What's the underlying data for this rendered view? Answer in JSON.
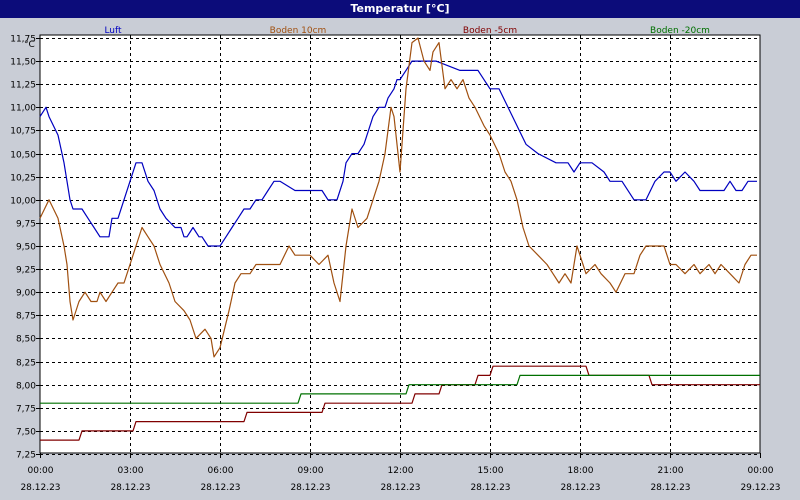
{
  "window": {
    "title": "Temperatur [°C]"
  },
  "colors": {
    "background": "#c9cdd6",
    "plot_bg": "#ffffff",
    "grid": "#000000",
    "title_bar": "#0c0c7a"
  },
  "chart_data": {
    "type": "line",
    "title": "Temperatur [°C]",
    "ylabel": "°C",
    "ylim": [
      7.25,
      11.75
    ],
    "yticks": [
      "7,25",
      "7,50",
      "7,75",
      "8,00",
      "8,25",
      "8,50",
      "8,75",
      "9,00",
      "9,25",
      "9,50",
      "9,75",
      "10,00",
      "10,25",
      "10,50",
      "10,75",
      "11,00",
      "11,25",
      "11,50",
      "11,75"
    ],
    "xlim": [
      0,
      24
    ],
    "xticks": [
      {
        "time": "00:00",
        "date": "28.12.23"
      },
      {
        "time": "03:00",
        "date": "28.12.23"
      },
      {
        "time": "06:00",
        "date": "28.12.23"
      },
      {
        "time": "09:00",
        "date": "28.12.23"
      },
      {
        "time": "12:00",
        "date": "28.12.23"
      },
      {
        "time": "15:00",
        "date": "28.12.23"
      },
      {
        "time": "18:00",
        "date": "28.12.23"
      },
      {
        "time": "21:00",
        "date": "28.12.23"
      },
      {
        "time": "00:00",
        "date": "29.12.23"
      }
    ],
    "grid": true,
    "legend_position": "top",
    "series": [
      {
        "name": "Luft",
        "color": "#0000c0",
        "x": [
          0,
          0.2,
          0.3,
          0.6,
          0.8,
          0.9,
          1,
          1.1,
          1.4,
          1.6,
          1.8,
          2.0,
          2.3,
          2.4,
          2.6,
          2.8,
          3.0,
          3.2,
          3.4,
          3.6,
          3.8,
          4.0,
          4.2,
          4.5,
          4.7,
          4.8,
          4.9,
          5.1,
          5.3,
          5.4,
          5.6,
          5.7,
          6.0,
          6.2,
          6.4,
          6.6,
          6.8,
          7.0,
          7.2,
          7.4,
          7.6,
          7.8,
          8.0,
          8.5,
          8.8,
          9.2,
          9.4,
          9.6,
          9.9,
          10.1,
          10.2,
          10.4,
          10.6,
          10.8,
          10.9,
          11.1,
          11.3,
          11.5,
          11.6,
          11.8,
          11.9,
          12.0,
          12.2,
          12.4,
          12.6,
          12.8,
          13.0,
          13.2,
          14.0,
          14.6,
          15.0,
          15.3,
          15.6,
          15.9,
          16.2,
          16.6,
          17.2,
          17.6,
          17.8,
          18.0,
          18.4,
          18.8,
          19.0,
          19.4,
          19.8,
          20.2,
          20.5,
          20.8,
          21.0,
          21.2,
          21.5,
          21.8,
          22.0,
          22.4,
          22.8,
          23.0,
          23.2,
          23.4,
          23.6,
          23.9
        ],
        "y": [
          10.9,
          11.0,
          10.9,
          10.7,
          10.4,
          10.2,
          10.0,
          9.9,
          9.9,
          9.8,
          9.7,
          9.6,
          9.6,
          9.8,
          9.8,
          10.0,
          10.2,
          10.4,
          10.4,
          10.2,
          10.1,
          9.9,
          9.8,
          9.7,
          9.7,
          9.6,
          9.6,
          9.7,
          9.6,
          9.6,
          9.5,
          9.5,
          9.5,
          9.6,
          9.7,
          9.8,
          9.9,
          9.9,
          10.0,
          10.0,
          10.1,
          10.2,
          10.2,
          10.1,
          10.1,
          10.1,
          10.1,
          10.0,
          10.0,
          10.2,
          10.4,
          10.5,
          10.5,
          10.6,
          10.7,
          10.9,
          11.0,
          11.0,
          11.1,
          11.2,
          11.3,
          11.3,
          11.4,
          11.5,
          11.5,
          11.5,
          11.5,
          11.5,
          11.4,
          11.4,
          11.2,
          11.2,
          11.0,
          10.8,
          10.6,
          10.5,
          10.4,
          10.4,
          10.3,
          10.4,
          10.4,
          10.3,
          10.2,
          10.2,
          10.0,
          10.0,
          10.2,
          10.3,
          10.3,
          10.2,
          10.3,
          10.2,
          10.1,
          10.1,
          10.1,
          10.2,
          10.1,
          10.1,
          10.2,
          10.2
        ]
      },
      {
        "name": "Boden 10cm",
        "color": "#a05010",
        "x": [
          0,
          0.3,
          0.6,
          0.8,
          0.9,
          1.0,
          1.1,
          1.3,
          1.5,
          1.7,
          1.9,
          2.0,
          2.2,
          2.4,
          2.6,
          2.8,
          3.0,
          3.2,
          3.4,
          3.6,
          3.8,
          4.0,
          4.3,
          4.5,
          4.8,
          5.0,
          5.2,
          5.5,
          5.7,
          5.8,
          6.0,
          6.3,
          6.5,
          6.7,
          7.0,
          7.2,
          7.5,
          7.8,
          8.0,
          8.3,
          8.5,
          8.8,
          9.0,
          9.3,
          9.6,
          9.8,
          10.0,
          10.2,
          10.4,
          10.6,
          10.9,
          11.1,
          11.3,
          11.5,
          11.7,
          11.8,
          12.0,
          12.2,
          12.4,
          12.6,
          12.8,
          13.0,
          13.1,
          13.3,
          13.5,
          13.7,
          13.9,
          14.1,
          14.3,
          14.5,
          14.8,
          15.0,
          15.3,
          15.5,
          15.7,
          15.9,
          16.1,
          16.3,
          16.6,
          16.9,
          17.1,
          17.3,
          17.5,
          17.7,
          17.9,
          18.2,
          18.5,
          18.7,
          19.0,
          19.2,
          19.5,
          19.8,
          20.0,
          20.2,
          20.5,
          20.8,
          21.0,
          21.2,
          21.5,
          21.8,
          22.0,
          22.3,
          22.5,
          22.7,
          23.0,
          23.3,
          23.5,
          23.7,
          23.9
        ],
        "y": [
          9.8,
          10.0,
          9.8,
          9.5,
          9.3,
          8.9,
          8.7,
          8.9,
          9.0,
          8.9,
          8.9,
          9.0,
          8.9,
          9.0,
          9.1,
          9.1,
          9.3,
          9.5,
          9.7,
          9.6,
          9.5,
          9.3,
          9.1,
          8.9,
          8.8,
          8.7,
          8.5,
          8.6,
          8.5,
          8.3,
          8.4,
          8.8,
          9.1,
          9.2,
          9.2,
          9.3,
          9.3,
          9.3,
          9.3,
          9.5,
          9.4,
          9.4,
          9.4,
          9.3,
          9.4,
          9.1,
          8.9,
          9.5,
          9.9,
          9.7,
          9.8,
          10.0,
          10.2,
          10.5,
          11.0,
          10.9,
          10.3,
          11.2,
          11.7,
          11.75,
          11.5,
          11.4,
          11.6,
          11.7,
          11.2,
          11.3,
          11.2,
          11.3,
          11.1,
          11.0,
          10.8,
          10.7,
          10.5,
          10.3,
          10.2,
          10.0,
          9.7,
          9.5,
          9.4,
          9.3,
          9.2,
          9.1,
          9.2,
          9.1,
          9.5,
          9.2,
          9.3,
          9.2,
          9.1,
          9.0,
          9.2,
          9.2,
          9.4,
          9.5,
          9.5,
          9.5,
          9.3,
          9.3,
          9.2,
          9.3,
          9.2,
          9.3,
          9.2,
          9.3,
          9.2,
          9.1,
          9.3,
          9.4,
          9.4
        ]
      },
      {
        "name": "Boden -5cm",
        "color": "#800000",
        "x": [
          0,
          1.3,
          1.4,
          3.1,
          3.2,
          6.8,
          6.9,
          9.4,
          9.5,
          12.4,
          12.5,
          13.3,
          13.4,
          14.5,
          14.6,
          15.0,
          15.1,
          18.2,
          18.3,
          20.3,
          20.4,
          24.0
        ],
        "y": [
          7.4,
          7.4,
          7.5,
          7.5,
          7.6,
          7.6,
          7.7,
          7.7,
          7.8,
          7.8,
          7.9,
          7.9,
          8.0,
          8.0,
          8.1,
          8.1,
          8.2,
          8.2,
          8.1,
          8.1,
          8.0,
          8.0
        ]
      },
      {
        "name": "Boden -20cm",
        "color": "#007000",
        "x": [
          0,
          8.6,
          8.7,
          12.2,
          12.3,
          15.9,
          16.0,
          24.0
        ],
        "y": [
          7.8,
          7.8,
          7.9,
          7.9,
          8.0,
          8.0,
          8.1,
          8.1
        ]
      }
    ]
  }
}
